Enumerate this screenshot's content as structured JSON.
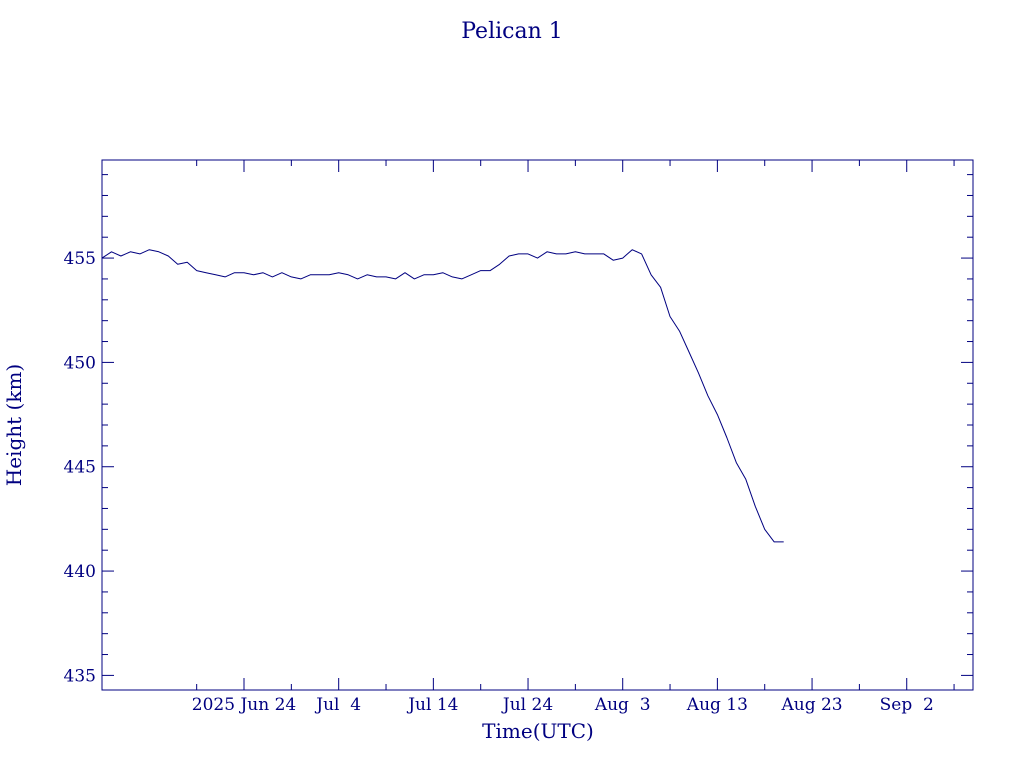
{
  "chart_data": {
    "type": "line",
    "title": "Pelican 1",
    "xlabel": "Time(UTC)",
    "ylabel": "Height (km)",
    "color": "#000080",
    "x_type": "date",
    "xlim": [
      "2025-06-09",
      "2025-09-09"
    ],
    "ylim": [
      434.3,
      459.7
    ],
    "y_ticks": [
      435,
      440,
      445,
      450,
      455
    ],
    "y_minor_step": 1,
    "x_ticks": [
      {
        "date": "2025-06-24",
        "label": "2025 Jun 24"
      },
      {
        "date": "2025-07-04",
        "label": "Jul  4"
      },
      {
        "date": "2025-07-14",
        "label": "Jul 14"
      },
      {
        "date": "2025-07-24",
        "label": "Jul 24"
      },
      {
        "date": "2025-08-03",
        "label": "Aug  3"
      },
      {
        "date": "2025-08-13",
        "label": "Aug 13"
      },
      {
        "date": "2025-08-23",
        "label": "Aug 23"
      },
      {
        "date": "2025-09-02",
        "label": "Sep  2"
      }
    ],
    "x_minor_ticks": [
      "2025-06-19",
      "2025-06-29",
      "2025-07-09",
      "2025-07-19",
      "2025-07-29",
      "2025-08-08",
      "2025-08-18",
      "2025-08-28",
      "2025-09-07"
    ],
    "grid": false,
    "legend": "none",
    "series": [
      {
        "x": [
          "2025-06-09",
          "2025-06-10",
          "2025-06-11",
          "2025-06-12",
          "2025-06-13",
          "2025-06-14",
          "2025-06-15",
          "2025-06-16",
          "2025-06-17",
          "2025-06-18",
          "2025-06-19",
          "2025-06-20",
          "2025-06-21",
          "2025-06-22",
          "2025-06-23",
          "2025-06-24",
          "2025-06-25",
          "2025-06-26",
          "2025-06-27",
          "2025-06-28",
          "2025-06-29",
          "2025-06-30",
          "2025-07-01",
          "2025-07-02",
          "2025-07-03",
          "2025-07-04",
          "2025-07-05",
          "2025-07-06",
          "2025-07-07",
          "2025-07-08",
          "2025-07-09",
          "2025-07-10",
          "2025-07-11",
          "2025-07-12",
          "2025-07-13",
          "2025-07-14",
          "2025-07-15",
          "2025-07-16",
          "2025-07-17",
          "2025-07-18",
          "2025-07-19",
          "2025-07-20",
          "2025-07-21",
          "2025-07-22",
          "2025-07-23",
          "2025-07-24",
          "2025-07-25",
          "2025-07-26",
          "2025-07-27",
          "2025-07-28",
          "2025-07-29",
          "2025-07-30",
          "2025-07-31",
          "2025-08-01",
          "2025-08-02",
          "2025-08-03",
          "2025-08-04",
          "2025-08-05",
          "2025-08-06",
          "2025-08-07",
          "2025-08-08",
          "2025-08-09",
          "2025-08-10",
          "2025-08-11",
          "2025-08-12",
          "2025-08-13",
          "2025-08-14",
          "2025-08-15",
          "2025-08-16",
          "2025-08-17",
          "2025-08-18",
          "2025-08-19",
          "2025-08-20"
        ],
        "y": [
          455.0,
          455.3,
          455.1,
          455.3,
          455.2,
          455.4,
          455.3,
          455.1,
          454.7,
          454.8,
          454.4,
          454.3,
          454.2,
          454.1,
          454.3,
          454.3,
          454.2,
          454.3,
          454.1,
          454.3,
          454.1,
          454.0,
          454.2,
          454.2,
          454.2,
          454.3,
          454.2,
          454.0,
          454.2,
          454.1,
          454.1,
          454.0,
          454.3,
          454.0,
          454.2,
          454.2,
          454.3,
          454.1,
          454.0,
          454.2,
          454.4,
          454.4,
          454.7,
          455.1,
          455.2,
          455.2,
          455.0,
          455.3,
          455.2,
          455.2,
          455.3,
          455.2,
          455.2,
          455.2,
          454.9,
          455.0,
          455.4,
          455.2,
          454.2,
          453.6,
          452.2,
          451.5,
          450.5,
          449.5,
          448.4,
          447.5,
          446.4,
          445.2,
          444.4,
          443.1,
          442.0,
          441.4,
          441.4
        ]
      }
    ]
  }
}
